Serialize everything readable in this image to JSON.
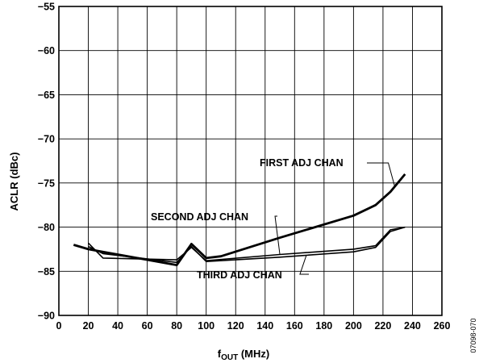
{
  "chart_data": {
    "type": "line",
    "title": "",
    "xlabel": "f",
    "xlabel_sub": "OUT",
    "xlabel_unit": " (MHz)",
    "ylabel": "ACLR (dBc)",
    "xlim": [
      0,
      260
    ],
    "ylim": [
      -90,
      -55
    ],
    "x_ticks": [
      "0",
      "20",
      "40",
      "60",
      "80",
      "100",
      "120",
      "140",
      "160",
      "180",
      "200",
      "220",
      "240",
      "260"
    ],
    "y_ticks": [
      "−55",
      "−60",
      "−65",
      "−70",
      "−75",
      "−80",
      "−85",
      "−90"
    ],
    "grid": true,
    "series": [
      {
        "name": "FIRST ADJ CHAN",
        "x": [
          10,
          20,
          30,
          80,
          90,
          100,
          110,
          150,
          200,
          215,
          225,
          235
        ],
        "y": [
          -82,
          -82.5,
          -82.8,
          -84.3,
          -81.9,
          -83.5,
          -83.3,
          -81.2,
          -78.7,
          -77.5,
          -76,
          -74
        ]
      },
      {
        "name": "SECOND ADJ CHAN",
        "x": [
          20,
          30,
          80,
          90,
          100,
          150,
          200,
          215,
          225,
          235
        ],
        "y": [
          -81.8,
          -83.5,
          -83.7,
          -82.3,
          -83.8,
          -83.1,
          -82.5,
          -82.1,
          -80.3,
          -80
        ]
      },
      {
        "name": "THIRD ADJ CHAN",
        "x": [
          20,
          30,
          80,
          90,
          100,
          150,
          200,
          215,
          225,
          235
        ],
        "y": [
          -82.2,
          -83.0,
          -84.0,
          -82.2,
          -83.9,
          -83.4,
          -82.8,
          -82.3,
          -80.5,
          -80
        ]
      }
    ],
    "annotations": [
      {
        "text": "FIRST ADJ CHAN",
        "target_series": 0,
        "target_x": 228
      },
      {
        "text": "SECOND ADJ CHAN",
        "target_series": 1,
        "target_x": 150
      },
      {
        "text": "THIRD ADJ CHAN",
        "target_series": 2,
        "target_x": 168
      }
    ],
    "figure_id": "07098-070"
  }
}
